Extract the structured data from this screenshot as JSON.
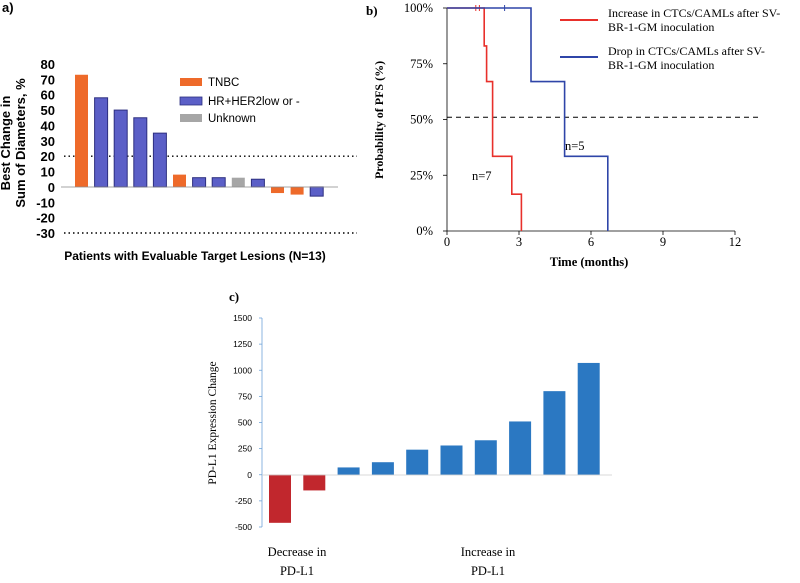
{
  "chart_data": [
    {
      "panel_label": "a)",
      "type": "bar",
      "ylabel_lines": [
        "Best Change in",
        "Sum of Diameters, %"
      ],
      "xlabel": "Patients with Evaluable Target Lesions (N=13)",
      "ylim": [
        -30,
        80
      ],
      "yticks": [
        "80",
        "70",
        "60",
        "50",
        "40",
        "30",
        "20",
        "10",
        "0",
        "-10",
        "-20",
        "-30"
      ],
      "reference_lines": [
        20,
        -30
      ],
      "series": [
        {
          "name": "TNBC",
          "color": "#ee6a2a"
        },
        {
          "name": "HR+HER2low or -",
          "color": "#5b5fc7"
        },
        {
          "name": "Unknown",
          "color": "#a6a6a6"
        }
      ],
      "bars": [
        {
          "value": 73,
          "group": "TNBC"
        },
        {
          "value": 58,
          "group": "HR+HER2low or -"
        },
        {
          "value": 50,
          "group": "HR+HER2low or -"
        },
        {
          "value": 45,
          "group": "HR+HER2low or -"
        },
        {
          "value": 35,
          "group": "HR+HER2low or -"
        },
        {
          "value": 8,
          "group": "TNBC"
        },
        {
          "value": 6,
          "group": "HR+HER2low or -"
        },
        {
          "value": 6,
          "group": "HR+HER2low or -"
        },
        {
          "value": 6,
          "group": "Unknown"
        },
        {
          "value": 5,
          "group": "HR+HER2low or -"
        },
        {
          "value": -4,
          "group": "TNBC"
        },
        {
          "value": -5,
          "group": "TNBC"
        },
        {
          "value": -6,
          "group": "HR+HER2low or -"
        }
      ]
    },
    {
      "panel_label": "b)",
      "type": "line",
      "ylabel": "Probability of PFS (%)",
      "xlabel": "Time (months)",
      "xlim": [
        0,
        12
      ],
      "xticks": [
        "0",
        "3",
        "6",
        "9",
        "12"
      ],
      "ylim": [
        0,
        100
      ],
      "yticks": [
        "100%",
        "75%",
        "50%",
        "25%",
        "0%"
      ],
      "reference_lines": [
        51
      ],
      "series": [
        {
          "name": "Increase in CTCs/CAMLs after SV-BR-1-GM inoculation",
          "legend_lines": [
            "Increase in CTCs/CAMLs after SV-",
            "BR-1-GM inoculation"
          ],
          "color": "#e8302b",
          "n_label": "n=7",
          "steps": [
            [
              0,
              100
            ],
            [
              1.55,
              100
            ],
            [
              1.55,
              83
            ],
            [
              1.65,
              83
            ],
            [
              1.65,
              67
            ],
            [
              1.9,
              67
            ],
            [
              1.9,
              33.5
            ],
            [
              2.7,
              33.5
            ],
            [
              2.7,
              16.5
            ],
            [
              3.1,
              16.5
            ],
            [
              3.1,
              0
            ]
          ],
          "censor_times": [
            1.2,
            1.35
          ]
        },
        {
          "name": "Drop in CTCs/CAMLs after SV-BR-1-GM inoculation",
          "legend_lines": [
            "Drop in CTCs/CAMLs after SV-",
            "BR-1-GM inoculation"
          ],
          "color": "#2f45a8",
          "n_label": "n=5",
          "steps": [
            [
              0,
              100
            ],
            [
              3.5,
              100
            ],
            [
              3.5,
              67
            ],
            [
              4.9,
              67
            ],
            [
              4.9,
              33.5
            ],
            [
              6.7,
              33.5
            ],
            [
              6.7,
              0
            ]
          ],
          "censor_times": [
            2.4
          ]
        }
      ]
    },
    {
      "panel_label": "c)",
      "type": "bar",
      "ylabel": "PD-L1 Expression Change",
      "ylim": [
        -500,
        1500
      ],
      "yticks": [
        "1500",
        "1250",
        "1000",
        "750",
        "500",
        "250",
        "0",
        "-250",
        "-500"
      ],
      "values": [
        -460,
        -150,
        70,
        120,
        240,
        280,
        330,
        510,
        800,
        1070
      ],
      "colors": [
        "#c1272d",
        "#c1272d",
        "#2b78c2",
        "#2b78c2",
        "#2b78c2",
        "#2b78c2",
        "#2b78c2",
        "#2b78c2",
        "#2b78c2",
        "#2b78c2"
      ],
      "group_labels": [
        {
          "lines": [
            "Decrease in",
            "PD-L1"
          ]
        },
        {
          "lines": [
            "Increase in",
            "PD-L1"
          ]
        }
      ]
    }
  ]
}
